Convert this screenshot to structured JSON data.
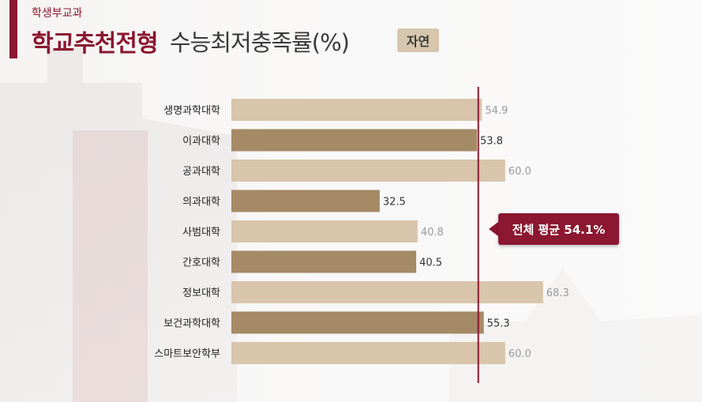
{
  "header": {
    "subtitle": "학생부교과",
    "title_main": "학교추천전형",
    "title_sub": "수능최저충족률(%)",
    "badge": "자연"
  },
  "callout": {
    "text": "전체 평균 54.1%"
  },
  "colors": {
    "accent": "#8b1730",
    "bar_light": "#d8c5ab",
    "bar_dark": "#a58a66",
    "badge": "#d6c6ae"
  },
  "chart_data": {
    "type": "bar",
    "orientation": "horizontal",
    "categories": [
      "생명과학대학",
      "이과대학",
      "공과대학",
      "의과대학",
      "사범대학",
      "간호대학",
      "정보대학",
      "보건과학대학",
      "스마트보안학부"
    ],
    "values": [
      54.9,
      53.8,
      60.0,
      32.5,
      40.8,
      40.5,
      68.3,
      55.3,
      60.0
    ],
    "value_labels": [
      "54.9",
      "53.8",
      "60.0",
      "32.5",
      "40.8",
      "40.5",
      "68.3",
      "55.3",
      "60.0"
    ],
    "shade": [
      "light",
      "dark",
      "light",
      "dark",
      "light",
      "dark",
      "light",
      "dark",
      "light"
    ],
    "reference_line": {
      "value": 54.1
    },
    "xlim": [
      0,
      100
    ]
  }
}
